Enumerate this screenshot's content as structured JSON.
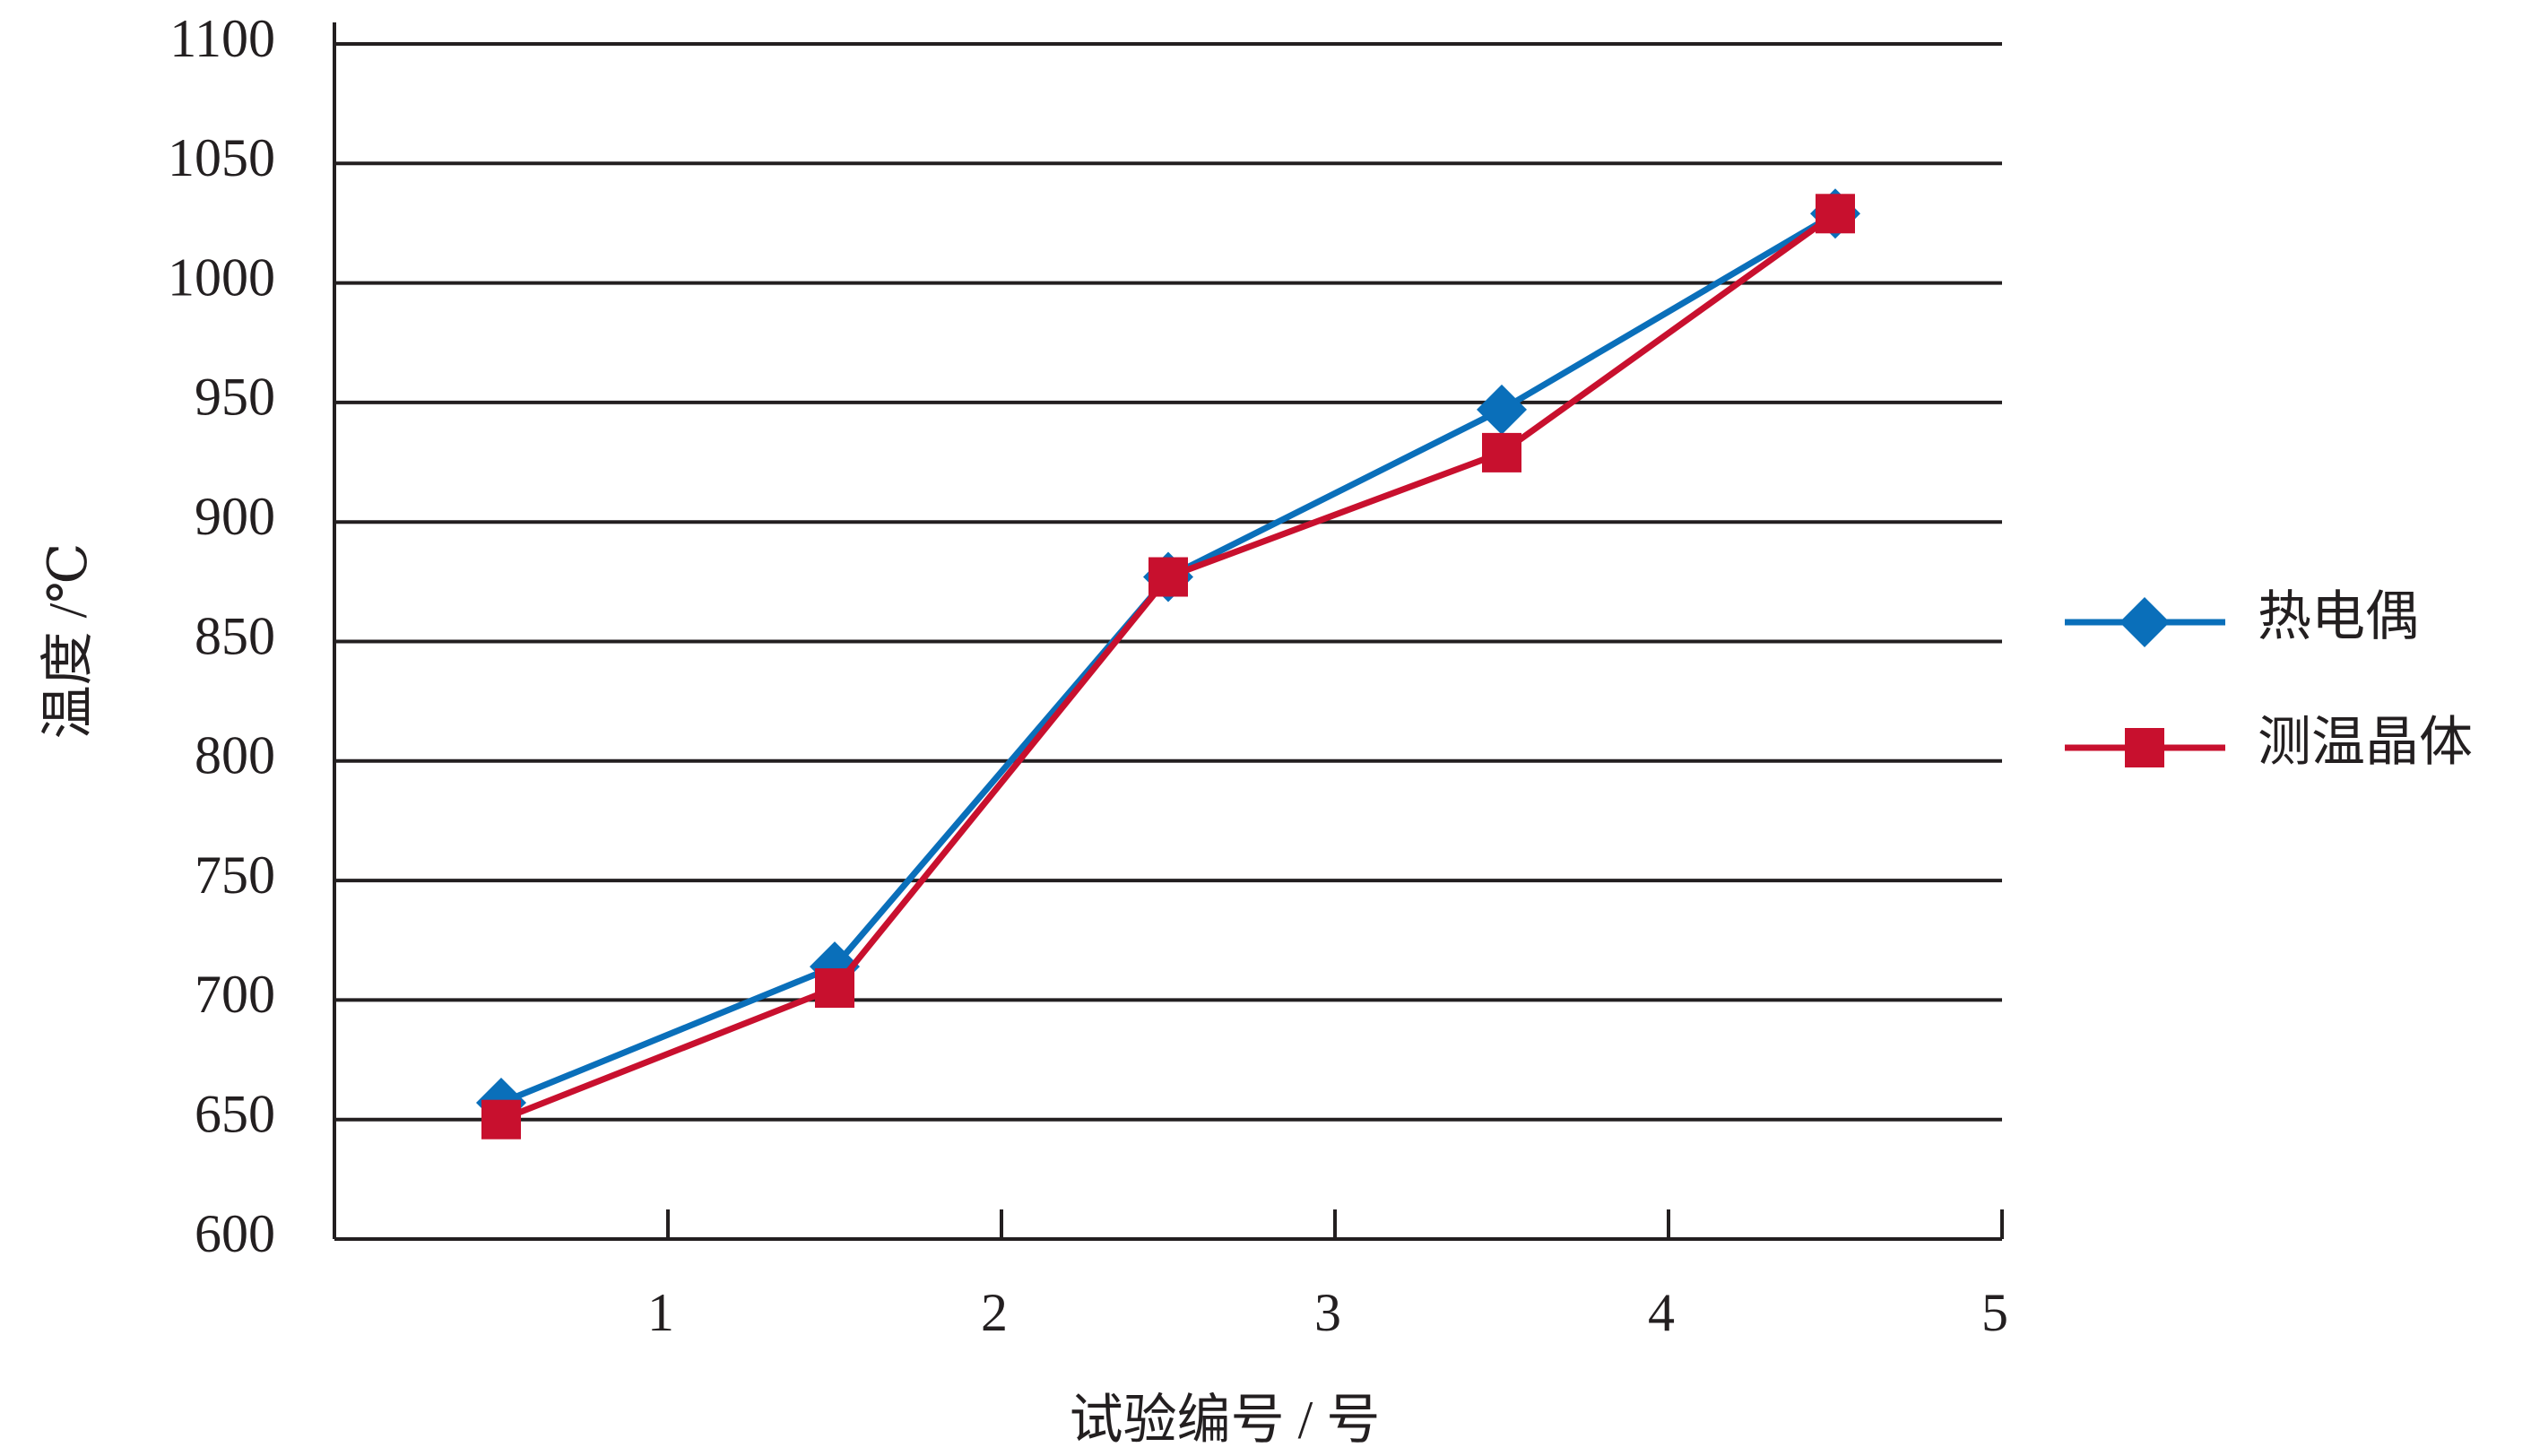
{
  "chart_data": {
    "type": "line",
    "x_label": "试验编号 / 号",
    "y_label": "温度 /℃",
    "x": [
      0.5,
      1.5,
      2.5,
      3.5,
      4.5
    ],
    "series": [
      {
        "name": "热电偶",
        "color": "#0a6fba",
        "marker": "diamond",
        "values": [
          657,
          714,
          877,
          947,
          1029
        ]
      },
      {
        "name": "测温晶体",
        "color": "#c8102e",
        "marker": "square",
        "values": [
          650,
          705,
          877,
          929,
          1029
        ]
      }
    ],
    "xlim": [
      0,
      5
    ],
    "xticks": [
      1,
      2,
      3,
      4,
      5
    ],
    "ylim": [
      600,
      1100
    ],
    "yticks": [
      600,
      650,
      700,
      750,
      800,
      850,
      900,
      950,
      1000,
      1050,
      1100
    ],
    "grid": true,
    "legend": "right"
  }
}
